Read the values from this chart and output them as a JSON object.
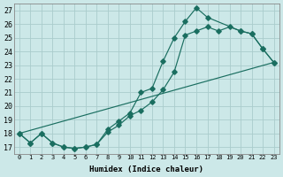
{
  "bg_color": "#cce8e8",
  "grid_color": "#aacccc",
  "line_color": "#1a6e60",
  "xlabel": "Humidex (Indice chaleur)",
  "xlim": [
    -0.5,
    23.5
  ],
  "ylim": [
    16.5,
    27.5
  ],
  "xticks": [
    0,
    1,
    2,
    3,
    4,
    5,
    6,
    7,
    8,
    9,
    10,
    11,
    12,
    13,
    14,
    15,
    16,
    17,
    18,
    19,
    20,
    21,
    22,
    23
  ],
  "yticks": [
    17,
    18,
    19,
    20,
    21,
    22,
    23,
    24,
    25,
    26,
    27
  ],
  "curve1_x": [
    0,
    1,
    2,
    3,
    4,
    5,
    6,
    7,
    8,
    9,
    10,
    11,
    12,
    13,
    14,
    15,
    16,
    17,
    20,
    21,
    22,
    23
  ],
  "curve1_y": [
    18.0,
    17.3,
    18.0,
    17.3,
    17.0,
    16.9,
    17.0,
    17.2,
    18.3,
    18.9,
    19.5,
    21.0,
    21.3,
    23.3,
    25.0,
    26.2,
    27.2,
    26.5,
    25.5,
    25.3,
    24.2,
    23.2
  ],
  "curve2_x": [
    0,
    1,
    2,
    3,
    4,
    5,
    6,
    7,
    8,
    9,
    10,
    11,
    12,
    13,
    14,
    15,
    16,
    17,
    18,
    19,
    20,
    21,
    22,
    23
  ],
  "curve2_y": [
    18.0,
    17.3,
    18.0,
    17.3,
    17.0,
    16.9,
    17.0,
    17.2,
    18.1,
    18.6,
    19.3,
    19.7,
    20.3,
    21.2,
    22.5,
    25.2,
    25.5,
    25.8,
    25.5,
    25.8,
    25.5,
    25.3,
    24.2,
    23.2
  ],
  "curve3_x": [
    0,
    23
  ],
  "curve3_y": [
    18.0,
    23.2
  ],
  "marker_size": 2.8
}
